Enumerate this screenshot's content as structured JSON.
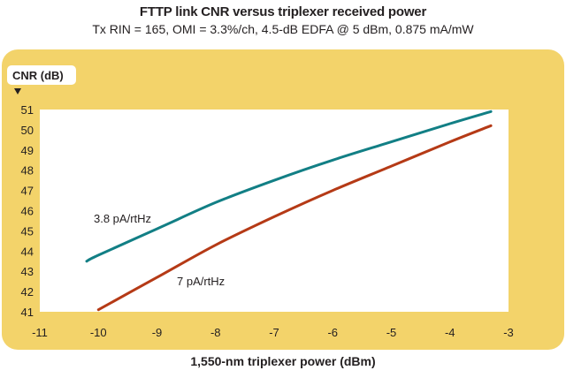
{
  "chart_data": {
    "type": "line",
    "title": "FTTP link CNR versus triplexer received power",
    "subtitle": "Tx RIN = 165, OMI = 3.3%/ch, 4.5-dB EDFA @ 5 dBm, 0.875 mA/mW",
    "xlabel": "1,550-nm triplexer power (dBm)",
    "ylabel": "CNR (dB)",
    "xlim": [
      -11,
      -3
    ],
    "ylim": [
      41,
      51
    ],
    "xticks": [
      -11,
      -10,
      -9,
      -8,
      -7,
      -6,
      -5,
      -4,
      -3
    ],
    "yticks": [
      41,
      42,
      43,
      44,
      45,
      46,
      47,
      48,
      49,
      50,
      51
    ],
    "grid": false,
    "series": [
      {
        "name": "3.8 pA/rtHz",
        "color": "#127f85",
        "x": [
          -10.2,
          -10,
          -9,
          -8,
          -7,
          -6,
          -5,
          -4,
          -3.3
        ],
        "y": [
          43.5,
          43.8,
          45.1,
          46.4,
          47.5,
          48.5,
          49.4,
          50.3,
          50.9
        ]
      },
      {
        "name": "7 pA/rtHz",
        "color": "#b53a16",
        "x": [
          -10,
          -9,
          -8,
          -7,
          -6,
          -5,
          -4,
          -3.3
        ],
        "y": [
          41.1,
          42.7,
          44.3,
          45.7,
          47.0,
          48.2,
          49.4,
          50.2
        ]
      }
    ]
  },
  "colors": {
    "frame": "#f3d36a",
    "plot_bg": "#ffffff",
    "text": "#231f20"
  }
}
